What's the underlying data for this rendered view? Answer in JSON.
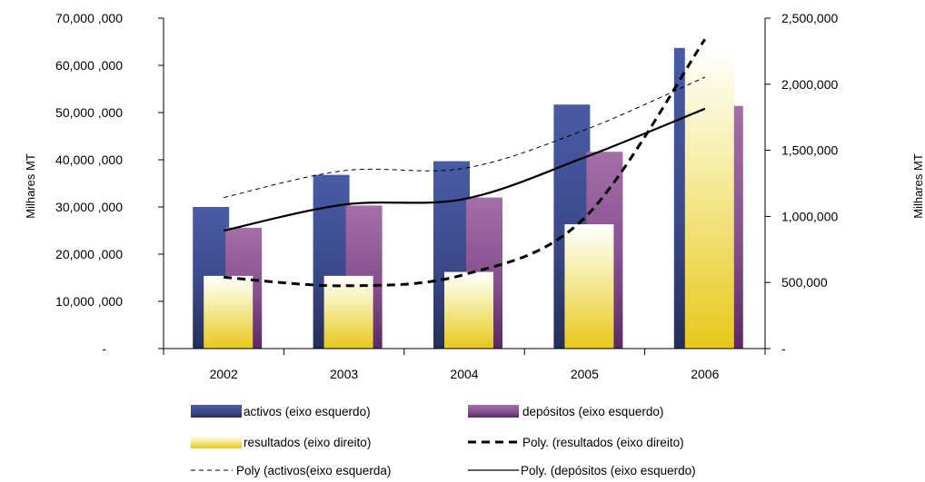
{
  "chart_data": {
    "type": "bar",
    "categories": [
      "2002",
      "2003",
      "2004",
      "2005",
      "2006"
    ],
    "left_axis": {
      "label": "Milhares MT",
      "ylim": [
        0,
        70000
      ],
      "ticks": [
        0,
        10000,
        20000,
        30000,
        40000,
        50000,
        60000,
        70000
      ],
      "tick_labels": [
        "-",
        "10,000 ,000",
        "20,000 ,000",
        "30,000 ,000",
        "40,000 ,000",
        "50,000 ,000",
        "60,000 ,000",
        "70,000 ,000"
      ]
    },
    "right_axis": {
      "label": "Milhares MT",
      "ylim": [
        0,
        2500000
      ],
      "ticks": [
        0,
        500000,
        1000000,
        1500000,
        2000000,
        2500000
      ],
      "tick_labels": [
        "-",
        "500,000",
        "1,000,000",
        "1,500,000",
        "2,000,000",
        "2,500,000"
      ]
    },
    "series": [
      {
        "name": "activos (eixo esquerdo)",
        "kind": "bar",
        "axis": "left",
        "values": [
          30000,
          36800,
          39700,
          51700,
          63700
        ],
        "color": "#3c4a8e"
      },
      {
        "name": "depósitos (eixo esquerdo)",
        "kind": "bar",
        "axis": "left",
        "values": [
          25600,
          30300,
          32000,
          41700,
          51400
        ],
        "color": "#8a5590"
      },
      {
        "name": "resultados (eixo direito)",
        "kind": "bar",
        "axis": "right",
        "values": [
          550000,
          550000,
          580000,
          940000,
          2280000
        ],
        "color": "#f0e070"
      },
      {
        "name": "Poly. (resultados (eixo direito)",
        "kind": "trendline",
        "axis": "right",
        "style": "thick-dashed",
        "values": [
          540000,
          475000,
          560000,
          990000,
          2340000
        ]
      },
      {
        "name": "Poly (activos(eixo esquerda)",
        "kind": "trendline",
        "axis": "left",
        "style": "thin-dashed",
        "values": [
          32000,
          37700,
          38200,
          46300,
          57500
        ]
      },
      {
        "name": "Poly. (depósitos (eixo esquerdo)",
        "kind": "trendline",
        "axis": "left",
        "style": "solid",
        "values": [
          25000,
          30500,
          31700,
          40500,
          50800
        ]
      }
    ],
    "grid": false,
    "legend_position": "bottom"
  }
}
